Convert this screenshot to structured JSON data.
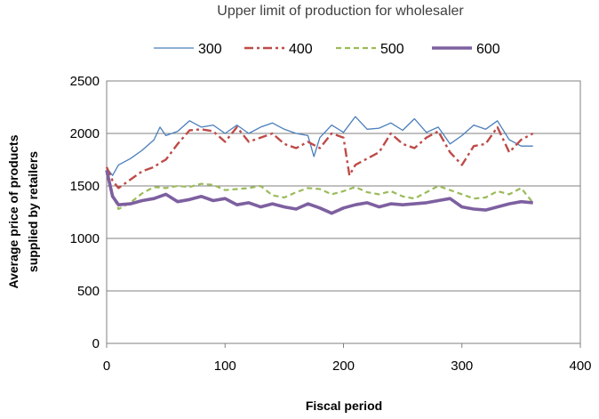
{
  "chart_data": {
    "type": "line",
    "title": "Upper limit of production for wholesaler",
    "xlabel": "Fiscal period",
    "ylabel_lines": [
      "Average price of products",
      "supplied by retailers"
    ],
    "xlim": [
      0,
      400
    ],
    "ylim": [
      0,
      2500
    ],
    "xticks": [
      "0",
      "100",
      "200",
      "300",
      "400"
    ],
    "yticks": [
      "0",
      "500",
      "1000",
      "1500",
      "2000",
      "2500"
    ],
    "grid": "horizontal",
    "legend_position": "top",
    "series": [
      {
        "name": "300",
        "color": "#4a7ebb",
        "style": "solid",
        "x": [
          0,
          5,
          10,
          20,
          30,
          40,
          45,
          50,
          60,
          70,
          80,
          90,
          100,
          110,
          120,
          130,
          140,
          150,
          160,
          170,
          175,
          180,
          190,
          200,
          210,
          220,
          230,
          240,
          250,
          260,
          270,
          280,
          290,
          300,
          310,
          320,
          330,
          340,
          350,
          360
        ],
        "y": [
          1670,
          1600,
          1700,
          1760,
          1840,
          1940,
          2060,
          1980,
          2020,
          2120,
          2060,
          2080,
          2000,
          2080,
          2000,
          2060,
          2100,
          2040,
          2000,
          1980,
          1780,
          1960,
          2080,
          2010,
          2160,
          2040,
          2050,
          2100,
          2030,
          2140,
          2010,
          2060,
          1900,
          1980,
          2080,
          2040,
          2120,
          1940,
          1880,
          1880
        ]
      },
      {
        "name": "400",
        "color": "#be4b48",
        "style": "dash-dot",
        "x": [
          0,
          5,
          10,
          20,
          30,
          40,
          45,
          50,
          60,
          70,
          80,
          90,
          100,
          110,
          120,
          130,
          140,
          150,
          160,
          170,
          180,
          190,
          200,
          205,
          210,
          220,
          230,
          240,
          250,
          260,
          270,
          280,
          290,
          300,
          310,
          320,
          330,
          340,
          350,
          360
        ],
        "y": [
          1680,
          1550,
          1480,
          1560,
          1640,
          1680,
          1720,
          1750,
          1900,
          2030,
          2040,
          2020,
          1920,
          2060,
          1920,
          1960,
          2000,
          1900,
          1860,
          1920,
          1860,
          2000,
          1960,
          1600,
          1700,
          1760,
          1820,
          2000,
          1900,
          1860,
          1960,
          2020,
          1820,
          1700,
          1880,
          1900,
          2060,
          1820,
          1940,
          2000
        ]
      },
      {
        "name": "500",
        "color": "#9bbb59",
        "style": "dashed",
        "x": [
          0,
          5,
          10,
          20,
          30,
          40,
          50,
          60,
          70,
          80,
          90,
          100,
          110,
          120,
          130,
          140,
          150,
          160,
          170,
          180,
          190,
          200,
          210,
          220,
          230,
          240,
          250,
          260,
          270,
          280,
          290,
          300,
          310,
          320,
          330,
          340,
          350,
          360
        ],
        "y": [
          1620,
          1420,
          1280,
          1340,
          1430,
          1490,
          1480,
          1500,
          1490,
          1520,
          1510,
          1460,
          1470,
          1480,
          1500,
          1410,
          1390,
          1440,
          1480,
          1470,
          1420,
          1450,
          1490,
          1440,
          1420,
          1450,
          1400,
          1380,
          1440,
          1500,
          1460,
          1420,
          1380,
          1390,
          1450,
          1420,
          1480,
          1340
        ]
      },
      {
        "name": "600",
        "color": "#7d60a0",
        "style": "solid-thick",
        "x": [
          0,
          5,
          10,
          20,
          30,
          40,
          50,
          60,
          70,
          80,
          90,
          100,
          110,
          120,
          130,
          140,
          150,
          160,
          170,
          180,
          190,
          200,
          210,
          220,
          230,
          240,
          250,
          260,
          270,
          280,
          290,
          300,
          310,
          320,
          330,
          340,
          350,
          360
        ],
        "y": [
          1650,
          1400,
          1320,
          1330,
          1360,
          1380,
          1420,
          1350,
          1370,
          1400,
          1360,
          1380,
          1320,
          1340,
          1300,
          1330,
          1300,
          1280,
          1330,
          1290,
          1240,
          1290,
          1320,
          1340,
          1300,
          1330,
          1320,
          1330,
          1340,
          1360,
          1380,
          1300,
          1280,
          1270,
          1300,
          1330,
          1350,
          1340
        ]
      }
    ]
  }
}
